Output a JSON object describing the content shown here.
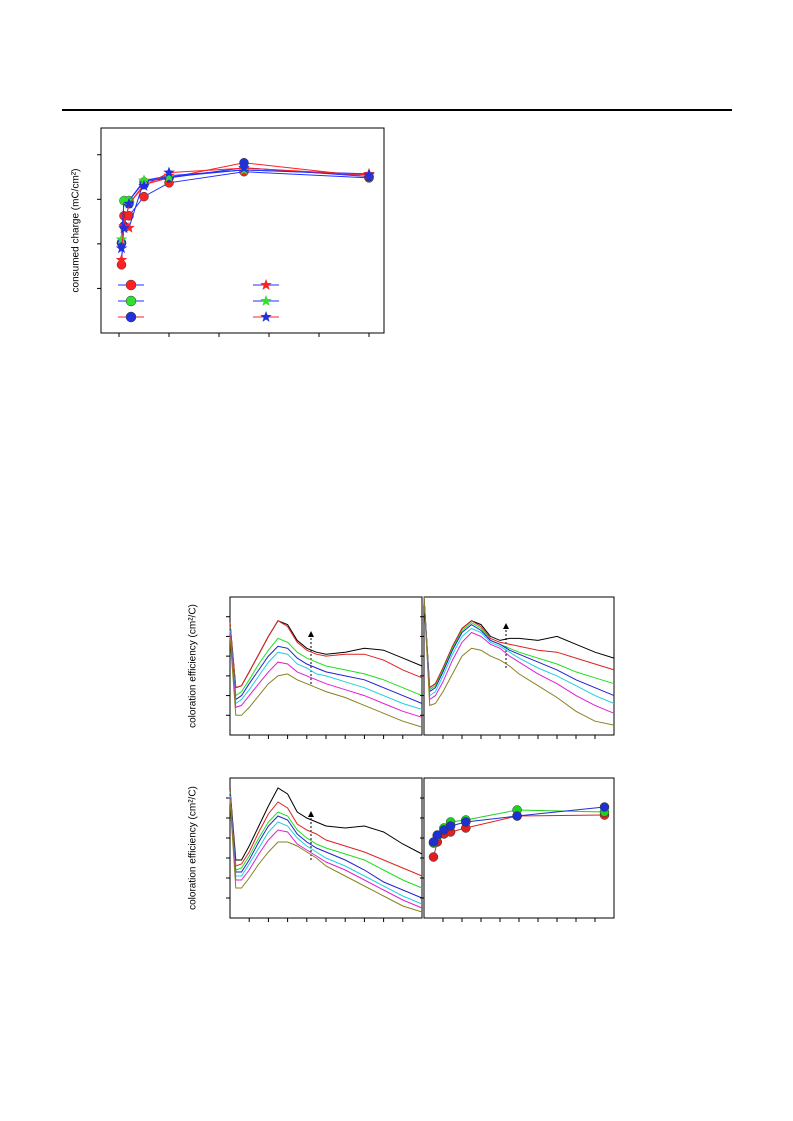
{
  "chart_data": [
    {
      "type": "line",
      "ylabel": "consumed charge (mC/cm²)",
      "x": [
        0.05,
        0.1,
        0.2,
        0.5,
        1,
        2.5,
        5
      ],
      "xlim": [
        -0.36,
        5.3
      ],
      "xticks": [
        0,
        1,
        2,
        3,
        4,
        5
      ],
      "ylim": [
        0,
        4.6
      ],
      "yticks": [
        1,
        2,
        3,
        4
      ],
      "series": [
        {
          "color": "#ff2020",
          "line_color": "#2030ff",
          "marker": "circle",
          "values": [
            1.53,
            2.63,
            2.63,
            3.06,
            3.37,
            3.62,
            3.48
          ]
        },
        {
          "color": "#30e030",
          "line_color": "#2030ff",
          "marker": "circle",
          "values": [
            2.02,
            2.97,
            2.97,
            3.39,
            3.48,
            3.71,
            3.51
          ]
        },
        {
          "color": "#2030e0",
          "line_color": "#ff2020",
          "marker": "circle",
          "values": [
            2.02,
            2.4,
            2.9,
            3.33,
            3.48,
            3.82,
            3.51
          ]
        },
        {
          "color": "#ff2020",
          "line_color": "#2030ff",
          "marker": "star",
          "values": [
            1.64,
            2.4,
            2.36,
            3.42,
            3.53,
            3.66,
            3.57
          ]
        },
        {
          "color": "#30e030",
          "line_color": "#2030ff",
          "marker": "star",
          "values": [
            2.1,
            2.97,
            2.97,
            3.42,
            3.5,
            3.66,
            3.55
          ]
        },
        {
          "color": "#2030e0",
          "line_color": "#ff2020",
          "marker": "star",
          "values": [
            1.9,
            2.35,
            2.9,
            3.3,
            3.6,
            3.7,
            3.55
          ]
        }
      ]
    },
    {
      "type": "line",
      "ylabel": "coloration efficiency (cm²/C)",
      "x": [
        0,
        0.3,
        0.6,
        1,
        1.5,
        2,
        2.5,
        3,
        3.5,
        4,
        4.5,
        5,
        6,
        7,
        8,
        9,
        10
      ],
      "xlim": [
        0,
        10
      ],
      "xticks": [
        1,
        2,
        3,
        4,
        5,
        6,
        7,
        8,
        9
      ],
      "ylim": [
        0,
        7
      ],
      "yticks": [
        1,
        2,
        3,
        4,
        5,
        6
      ],
      "series": [
        {
          "color": "#000000",
          "values": [
            5.7,
            2.4,
            2.5,
            3.2,
            4.1,
            5.0,
            5.8,
            5.6,
            4.8,
            4.4,
            4.2,
            4.1,
            4.2,
            4.4,
            4.3,
            3.9,
            3.5
          ]
        },
        {
          "color": "#e02020",
          "values": [
            5.7,
            2.4,
            2.5,
            3.2,
            4.1,
            5.0,
            5.8,
            5.5,
            4.7,
            4.3,
            4.1,
            4.0,
            4.1,
            4.1,
            3.8,
            3.3,
            2.9
          ]
        },
        {
          "color": "#20e020",
          "values": [
            5.5,
            2.0,
            2.2,
            2.8,
            3.6,
            4.3,
            4.9,
            4.7,
            4.2,
            3.9,
            3.7,
            3.5,
            3.3,
            3.1,
            2.8,
            2.4,
            2.0
          ]
        },
        {
          "color": "#2020d0",
          "values": [
            5.4,
            1.8,
            2.0,
            2.6,
            3.3,
            4.0,
            4.5,
            4.4,
            3.9,
            3.6,
            3.4,
            3.2,
            3.0,
            2.8,
            2.4,
            2.0,
            1.6
          ]
        },
        {
          "color": "#20d0e0",
          "values": [
            5.3,
            1.6,
            1.8,
            2.3,
            3.0,
            3.7,
            4.2,
            4.1,
            3.6,
            3.4,
            3.1,
            3.0,
            2.7,
            2.4,
            2.0,
            1.6,
            1.3
          ]
        },
        {
          "color": "#e020d0",
          "values": [
            5.2,
            1.4,
            1.5,
            2.0,
            2.6,
            3.2,
            3.7,
            3.6,
            3.2,
            3.0,
            2.8,
            2.6,
            2.3,
            2.0,
            1.6,
            1.2,
            0.9
          ]
        },
        {
          "color": "#8a8020",
          "values": [
            5.0,
            1.0,
            1.0,
            1.4,
            2.0,
            2.6,
            3.0,
            3.1,
            2.8,
            2.6,
            2.4,
            2.2,
            1.9,
            1.5,
            1.1,
            0.7,
            0.4
          ]
        }
      ]
    },
    {
      "type": "line",
      "x": [
        0,
        0.3,
        0.6,
        1,
        1.5,
        2,
        2.5,
        3,
        3.5,
        4,
        4.5,
        5,
        6,
        7,
        8,
        9,
        10
      ],
      "xlim": [
        0,
        10
      ],
      "xticks": [
        1,
        2,
        3,
        4,
        5,
        6,
        7,
        8,
        9
      ],
      "ylim": [
        0,
        7
      ],
      "yticks": [
        1,
        2,
        3,
        4,
        5,
        6
      ],
      "series": [
        {
          "color": "#000000",
          "values": [
            7,
            2.4,
            2.6,
            3.4,
            4.5,
            5.4,
            5.8,
            5.6,
            5.0,
            4.8,
            4.9,
            4.9,
            4.8,
            5.0,
            4.6,
            4.2,
            3.9
          ]
        },
        {
          "color": "#e02020",
          "values": [
            7,
            2.4,
            2.6,
            3.4,
            4.5,
            5.4,
            5.8,
            5.5,
            4.9,
            4.7,
            4.6,
            4.5,
            4.3,
            4.2,
            3.9,
            3.6,
            3.3
          ]
        },
        {
          "color": "#20e020",
          "values": [
            7,
            2.3,
            2.5,
            3.3,
            4.4,
            5.3,
            5.7,
            5.4,
            4.8,
            4.6,
            4.4,
            4.2,
            3.9,
            3.6,
            3.2,
            2.9,
            2.6
          ]
        },
        {
          "color": "#2020d0",
          "values": [
            7,
            2.2,
            2.4,
            3.2,
            4.3,
            5.2,
            5.6,
            5.3,
            4.8,
            4.6,
            4.3,
            4.1,
            3.7,
            3.3,
            2.8,
            2.4,
            2.0
          ]
        },
        {
          "color": "#20d0e0",
          "values": [
            7,
            2.0,
            2.2,
            3.0,
            4.1,
            5.0,
            5.4,
            5.2,
            4.7,
            4.5,
            4.2,
            3.9,
            3.4,
            3.0,
            2.5,
            2.0,
            1.6
          ]
        },
        {
          "color": "#e020d0",
          "values": [
            7,
            1.8,
            2.0,
            2.7,
            3.8,
            4.7,
            5.2,
            5.0,
            4.6,
            4.4,
            4.0,
            3.7,
            3.1,
            2.6,
            2.0,
            1.5,
            1.1
          ]
        },
        {
          "color": "#8a8020",
          "values": [
            7,
            1.5,
            1.6,
            2.2,
            3.1,
            4.0,
            4.4,
            4.3,
            4.0,
            3.8,
            3.5,
            3.1,
            2.5,
            1.9,
            1.2,
            0.7,
            0.5
          ]
        }
      ]
    },
    {
      "type": "line",
      "ylabel": "coloration efficiency (cm²/C)",
      "x": [
        0,
        0.3,
        0.6,
        1,
        1.5,
        2,
        2.5,
        3,
        3.5,
        4,
        4.5,
        5,
        6,
        7,
        8,
        9,
        10
      ],
      "xlim": [
        0,
        10
      ],
      "xticks": [
        1,
        2,
        3,
        4,
        5,
        6,
        7,
        8,
        9
      ],
      "ylim": [
        0,
        7
      ],
      "yticks": [
        1,
        2,
        3,
        4,
        5,
        6
      ],
      "series": [
        {
          "color": "#000000",
          "values": [
            6.5,
            2.9,
            2.9,
            3.6,
            4.6,
            5.6,
            6.5,
            6.2,
            5.3,
            5.0,
            4.8,
            4.6,
            4.5,
            4.6,
            4.3,
            3.7,
            3.2
          ]
        },
        {
          "color": "#e02020",
          "values": [
            6.4,
            2.6,
            2.7,
            3.3,
            4.3,
            5.2,
            5.8,
            5.5,
            4.7,
            4.4,
            4.2,
            3.9,
            3.6,
            3.3,
            2.9,
            2.5,
            2.1
          ]
        },
        {
          "color": "#20e020",
          "values": [
            6.3,
            2.4,
            2.5,
            3.1,
            4.0,
            4.8,
            5.3,
            5.1,
            4.4,
            4.0,
            3.7,
            3.5,
            3.2,
            2.9,
            2.4,
            1.9,
            1.5
          ]
        },
        {
          "color": "#2020d0",
          "values": [
            6.2,
            2.3,
            2.3,
            2.9,
            3.8,
            4.6,
            5.1,
            4.9,
            4.2,
            3.8,
            3.5,
            3.3,
            2.9,
            2.4,
            1.8,
            1.4,
            1.0
          ]
        },
        {
          "color": "#20d0e0",
          "values": [
            6.1,
            2.1,
            2.1,
            2.7,
            3.5,
            4.3,
            4.8,
            4.6,
            4.0,
            3.6,
            3.3,
            3.0,
            2.6,
            2.1,
            1.6,
            1.1,
            0.7
          ]
        },
        {
          "color": "#e020d0",
          "values": [
            6.0,
            1.9,
            1.9,
            2.4,
            3.2,
            3.9,
            4.4,
            4.3,
            3.7,
            3.4,
            3.1,
            2.8,
            2.4,
            1.9,
            1.4,
            0.9,
            0.5
          ]
        },
        {
          "color": "#8a8020",
          "values": [
            5.9,
            1.5,
            1.5,
            2.0,
            2.7,
            3.3,
            3.8,
            3.8,
            3.6,
            3.3,
            3.0,
            2.6,
            2.1,
            1.6,
            1.1,
            0.6,
            0.3
          ]
        }
      ]
    },
    {
      "type": "line",
      "x": [
        0.5,
        0.7,
        1.05,
        1.4,
        2.2,
        4.9,
        9.5
      ],
      "xlim": [
        0,
        10
      ],
      "xticks": [
        1,
        2,
        3,
        4,
        5,
        6,
        7,
        8,
        9
      ],
      "ylim": [
        0,
        7
      ],
      "yticks": [
        1,
        2,
        3,
        4,
        5,
        6
      ],
      "series": [
        {
          "color": "#e02020",
          "marker": "circle",
          "values": [
            3.05,
            3.8,
            4.2,
            4.3,
            4.5,
            5.1,
            5.15
          ]
        },
        {
          "color": "#20d020",
          "marker": "circle",
          "values": [
            3.75,
            4.1,
            4.5,
            4.8,
            4.9,
            5.4,
            5.3
          ]
        },
        {
          "color": "#2030d0",
          "marker": "circle",
          "values": [
            3.8,
            4.15,
            4.4,
            4.6,
            4.8,
            5.1,
            5.55
          ]
        }
      ]
    }
  ]
}
